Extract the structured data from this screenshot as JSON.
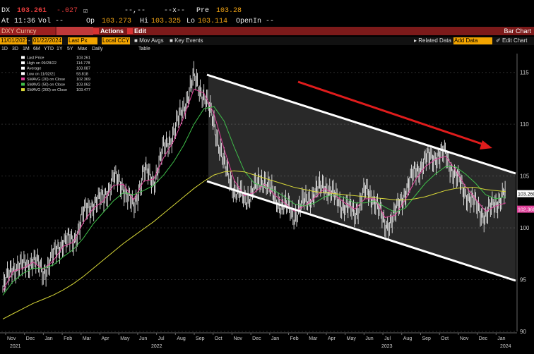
{
  "quote": {
    "ticker": "DX",
    "last": "103.261",
    "change": "-.027",
    "dashes1": "--,--",
    "dashes2": "--x--",
    "prev_label": "Pre",
    "prev_value": "103.28",
    "time_label": "At 11:36",
    "vol_label": "Vol --",
    "open_label": "Op",
    "open_value": "103.273",
    "high_label": "Hi",
    "high_value": "103.325",
    "low_label": "Lo",
    "low_value": "103.114",
    "openint_label": "OpenIn --"
  },
  "funcbar": {
    "security": "DXY Curncy",
    "actions": "Actions",
    "edit": "Edit",
    "title": "Bar Chart"
  },
  "controls": {
    "start_date": "11/01/2021",
    "end_date": "01/22/2024",
    "price_type": "Last Px",
    "currency": "Local CCY",
    "mov_avgs": "Mov Avgs",
    "key_events": "Key Events",
    "table": "Table",
    "related_data": "Related Data",
    "add_data": "Add Data",
    "edit_chart": "Edit Chart"
  },
  "ranges": [
    "1D",
    "3D",
    "1M",
    "6M",
    "YTD",
    "1Y",
    "5Y",
    "Max",
    "Daily"
  ],
  "legend": [
    {
      "label": "Last Price",
      "value": "103.261",
      "color": "#ffffff"
    },
    {
      "label": "High on 09/28/22",
      "value": "114.778",
      "color": "#ffffff"
    },
    {
      "label": "Average",
      "value": "103.087",
      "color": "#ffffff"
    },
    {
      "label": "Low on 11/02/21",
      "value": "93.818",
      "color": "#ffffff"
    },
    {
      "label": "SMAVG (20)  on Close",
      "value": "102.369",
      "color": "#e0409a"
    },
    {
      "label": "SMAVG (50)  on Close",
      "value": "103.062",
      "color": "#3fbf4a"
    },
    {
      "label": "SMAVG (200)  on Close",
      "value": "103.477",
      "color": "#d8d838"
    }
  ],
  "chart_data": {
    "type": "line",
    "title": "",
    "xlabel": "",
    "ylabel": "",
    "ylim": [
      90,
      116
    ],
    "y_ticks": [
      90,
      95,
      100,
      105,
      110,
      115
    ],
    "x_month_labels": [
      "Nov",
      "Dec",
      "Jan",
      "Feb",
      "Mar",
      "Apr",
      "May",
      "Jun",
      "Jul",
      "Aug",
      "Sep",
      "Oct",
      "Nov",
      "Dec",
      "Jan",
      "Feb",
      "Mar",
      "Apr",
      "May",
      "Jun",
      "Jul",
      "Aug",
      "Sep",
      "Oct",
      "Nov",
      "Dec",
      "Jan"
    ],
    "x_year_labels": [
      "2021",
      "2022",
      "2023",
      "2024"
    ],
    "price_label": "103.260",
    "sma20_label": "102.369",
    "series": [
      {
        "name": "Last Price",
        "color": "#ffffff",
        "values": [
          94.1,
          96.3,
          96.2,
          97.0,
          95.7,
          97.2,
          98.8,
          98.6,
          101.3,
          102.4,
          102.8,
          104.8,
          104.0,
          101.8,
          105.5,
          104.5,
          107.6,
          109.2,
          111.7,
          114.4,
          112.8,
          110.1,
          106.0,
          103.7,
          102.7,
          103.7,
          104.8,
          102.8,
          102.1,
          101.2,
          102.5,
          103.3,
          104.2,
          102.9,
          102.1,
          101.4,
          103.5,
          102.8,
          100.1,
          101.3,
          103.5,
          105.4,
          106.5,
          106.9,
          107.1,
          105.0,
          103.4,
          102.2,
          101.1,
          102.5,
          103.3
        ]
      },
      {
        "name": "SMAVG (20) on Close",
        "color": "#e0409a",
        "values": [
          93.9,
          95.8,
          96.1,
          96.7,
          96.0,
          96.8,
          98.2,
          98.6,
          100.5,
          101.9,
          102.6,
          104.1,
          104.2,
          102.7,
          104.5,
          104.7,
          106.8,
          108.4,
          110.7,
          113.4,
          113.0,
          111.0,
          107.6,
          104.6,
          103.1,
          103.4,
          104.2,
          103.2,
          102.4,
          101.6,
          102.1,
          102.9,
          103.8,
          103.2,
          102.4,
          101.8,
          102.8,
          102.8,
          101.0,
          101.2,
          102.7,
          104.6,
          105.9,
          106.6,
          106.9,
          105.6,
          104.0,
          102.8,
          101.6,
          102.1,
          102.4
        ]
      },
      {
        "name": "SMAVG (50) on Close",
        "color": "#3fbf4a",
        "values": [
          93.5,
          94.8,
          95.6,
          96.1,
          96.1,
          96.4,
          97.2,
          97.9,
          99.0,
          100.4,
          101.5,
          102.6,
          103.4,
          103.2,
          103.6,
          104.1,
          105.1,
          106.4,
          108.0,
          110.0,
          111.5,
          111.7,
          110.3,
          107.8,
          105.5,
          104.3,
          104.0,
          103.6,
          103.0,
          102.3,
          102.1,
          102.4,
          103.0,
          103.2,
          102.9,
          102.4,
          102.4,
          102.6,
          102.0,
          101.5,
          101.9,
          103.1,
          104.3,
          105.2,
          105.9,
          105.9,
          105.2,
          104.3,
          103.2,
          102.8,
          103.0
        ]
      },
      {
        "name": "SMAVG (200) on Close",
        "color": "#d8d838",
        "values": [
          91.2,
          91.7,
          92.2,
          92.7,
          93.1,
          93.5,
          94.0,
          94.6,
          95.3,
          96.1,
          96.9,
          97.7,
          98.5,
          99.2,
          99.9,
          100.6,
          101.4,
          102.2,
          103.0,
          103.8,
          104.5,
          105.1,
          105.4,
          105.5,
          105.4,
          105.1,
          104.8,
          104.5,
          104.2,
          103.9,
          103.7,
          103.5,
          103.4,
          103.3,
          103.2,
          103.1,
          103.0,
          102.9,
          102.8,
          102.7,
          102.7,
          102.8,
          103.0,
          103.3,
          103.6,
          103.8,
          103.9,
          103.9,
          103.7,
          103.6,
          103.5
        ]
      }
    ]
  }
}
